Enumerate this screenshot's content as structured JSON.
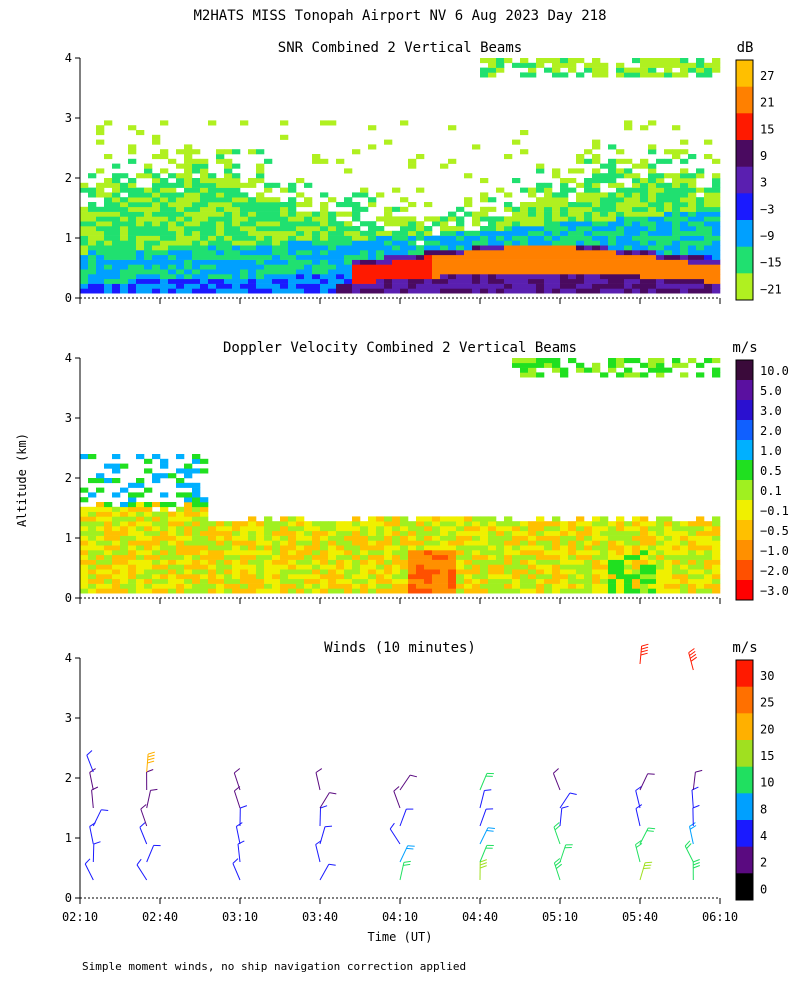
{
  "title": "M2HATS MISS Tonopah Airport NV    6 Aug 2023 Day 218",
  "ylabel": "Altitude (km)",
  "xlabel": "Time (UT)",
  "footnote": "Simple moment winds, no ship navigation correction applied",
  "x_ticks": [
    "02:10",
    "02:40",
    "03:10",
    "03:40",
    "04:10",
    "04:40",
    "05:10",
    "05:40",
    "06:10"
  ],
  "y_ticks": [
    "0",
    "1",
    "2",
    "3",
    "4"
  ],
  "chart_data": [
    {
      "type": "heatmap",
      "title": "SNR Combined 2 Vertical Beams",
      "unit": "dB",
      "xlim": [
        "02:10",
        "06:10"
      ],
      "ylim": [
        0,
        4
      ],
      "colorbar_labels": [
        "27",
        "21",
        "15",
        "9",
        "3",
        "−3",
        "−9",
        "−15",
        "−21"
      ],
      "colorbar_colors": [
        "#ffbf00",
        "#ff8000",
        "#ff1a00",
        "#4a0a60",
        "#5a1fb0",
        "#1a1aff",
        "#00a0ff",
        "#20e070",
        "#b0f020"
      ],
      "notes": "Stable layer near 0.5 km in the second half with SNR > 15 dB; weaker echoes up to about 2.5 km"
    },
    {
      "type": "heatmap",
      "title": "Doppler Velocity Combined 2 Vertical Beams",
      "unit": "m/s",
      "xlim": [
        "02:10",
        "06:10"
      ],
      "ylim": [
        0,
        4
      ],
      "colorbar_labels": [
        "10.0",
        "5.0",
        "3.0",
        "2.0",
        "1.0",
        "0.5",
        "0.1",
        "−0.1",
        "−0.5",
        "−1.0",
        "−2.0",
        "−3.0"
      ],
      "colorbar_colors": [
        "#3a0a3a",
        "#5a10a0",
        "#2a10d0",
        "#1060ff",
        "#00b0ff",
        "#20e020",
        "#a0f020",
        "#f0f000",
        "#ffc000",
        "#ff9000",
        "#ff5000",
        "#ff0000"
      ],
      "notes": "Mostly weak downward motion (-0.1 to -1.0 m/s) below 1.3 km"
    },
    {
      "type": "scatter",
      "title": "Winds (10 minutes)",
      "unit": "m/s",
      "xlim": [
        "02:10",
        "06:10"
      ],
      "ylim": [
        0,
        4
      ],
      "colorbar_labels": [
        "30",
        "25",
        "20",
        "15",
        "10",
        "8",
        "4",
        "2",
        "0"
      ],
      "colorbar_colors": [
        "#ff1a00",
        "#ff7000",
        "#ffb000",
        "#a0e020",
        "#20e060",
        "#00a0ff",
        "#1a1aff",
        "#5a0a80",
        "#000000"
      ],
      "series": [
        {
          "time": "02:15",
          "altitude_km": [
            0.3,
            0.6,
            0.9,
            1.2,
            1.5,
            1.8,
            2.1
          ],
          "speed_ms": [
            4,
            5,
            5,
            4,
            3,
            3,
            4
          ]
        },
        {
          "time": "02:35",
          "altitude_km": [
            0.3,
            0.6,
            0.9,
            1.2,
            1.5,
            1.8,
            2.1
          ],
          "speed_ms": [
            6,
            5,
            4,
            3,
            2,
            3,
            20
          ]
        },
        {
          "time": "03:10",
          "altitude_km": [
            0.3,
            0.6,
            0.9,
            1.2,
            1.5,
            1.8
          ],
          "speed_ms": [
            5,
            5,
            4,
            4,
            3,
            3
          ]
        },
        {
          "time": "03:40",
          "altitude_km": [
            0.3,
            0.6,
            0.9,
            1.2,
            1.5,
            1.8
          ],
          "speed_ms": [
            6,
            5,
            5,
            4,
            3,
            2
          ]
        },
        {
          "time": "04:10",
          "altitude_km": [
            0.3,
            0.6,
            0.9,
            1.2,
            1.5,
            1.8
          ],
          "speed_ms": [
            12,
            8,
            6,
            5,
            3,
            3
          ]
        },
        {
          "time": "04:40",
          "altitude_km": [
            0.3,
            0.6,
            0.9,
            1.2,
            1.5,
            1.8
          ],
          "speed_ms": [
            16,
            12,
            8,
            5,
            4,
            10
          ]
        },
        {
          "time": "05:10",
          "altitude_km": [
            0.3,
            0.6,
            0.9,
            1.2,
            1.5,
            1.8
          ],
          "speed_ms": [
            14,
            12,
            10,
            6,
            4,
            3
          ]
        },
        {
          "time": "05:40",
          "altitude_km": [
            0.3,
            0.6,
            0.9,
            1.2,
            1.5,
            1.8,
            3.9
          ],
          "speed_ms": [
            15,
            12,
            10,
            6,
            4,
            3,
            30
          ]
        },
        {
          "time": "06:00",
          "altitude_km": [
            0.3,
            0.6,
            0.9,
            1.2,
            1.5,
            1.8,
            3.8
          ],
          "speed_ms": [
            14,
            10,
            8,
            5,
            4,
            3,
            30
          ]
        }
      ]
    }
  ]
}
